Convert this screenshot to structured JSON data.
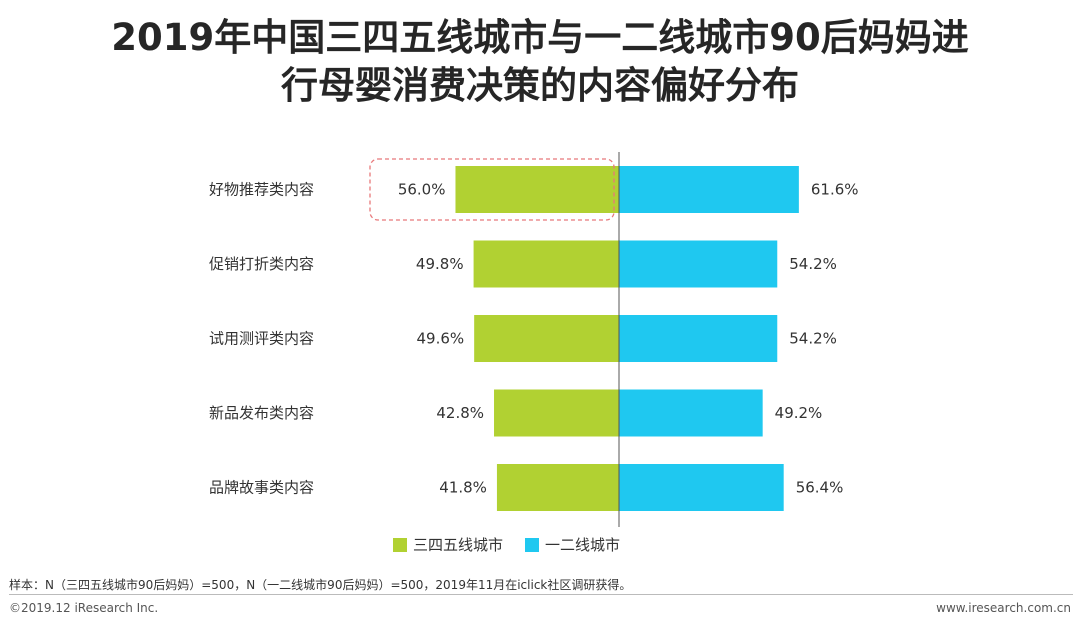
{
  "title": {
    "line1": "2019年中国三四五线城市与一二线城市90后妈妈进",
    "line2": "行母婴消费决策的内容偏好分布"
  },
  "chart_data": {
    "type": "bar",
    "orientation": "diverging-horizontal",
    "categories": [
      "好物推荐类内容",
      "促销打折类内容",
      "试用测评类内容",
      "新品发布类内容",
      "品牌故事类内容"
    ],
    "series": [
      {
        "name": "三四五线城市",
        "color": "#B1D132",
        "values": [
          56.0,
          49.8,
          49.6,
          42.8,
          41.8
        ],
        "labels": [
          "56.0%",
          "49.8%",
          "49.6%",
          "42.8%",
          "41.8%"
        ]
      },
      {
        "name": "一二线城市",
        "color": "#1FC8F0",
        "values": [
          61.6,
          54.2,
          54.2,
          49.2,
          56.4
        ],
        "labels": [
          "61.6%",
          "54.2%",
          "54.2%",
          "49.2%",
          "56.4%"
        ]
      }
    ],
    "unit": "%",
    "highlight": {
      "category": "好物推荐类内容",
      "series": "三四五线城市",
      "style": "dashed-red-box"
    },
    "legend_position": "bottom-center",
    "grid": false
  },
  "footer": {
    "note": "样本：N（三四五线城市90后妈妈）=500，N（一二线城市90后妈妈）=500，2019年11月在iclick社区调研获得。",
    "copyright": "©2019.12 iResearch Inc.",
    "website": "www.iresearch.com.cn"
  }
}
